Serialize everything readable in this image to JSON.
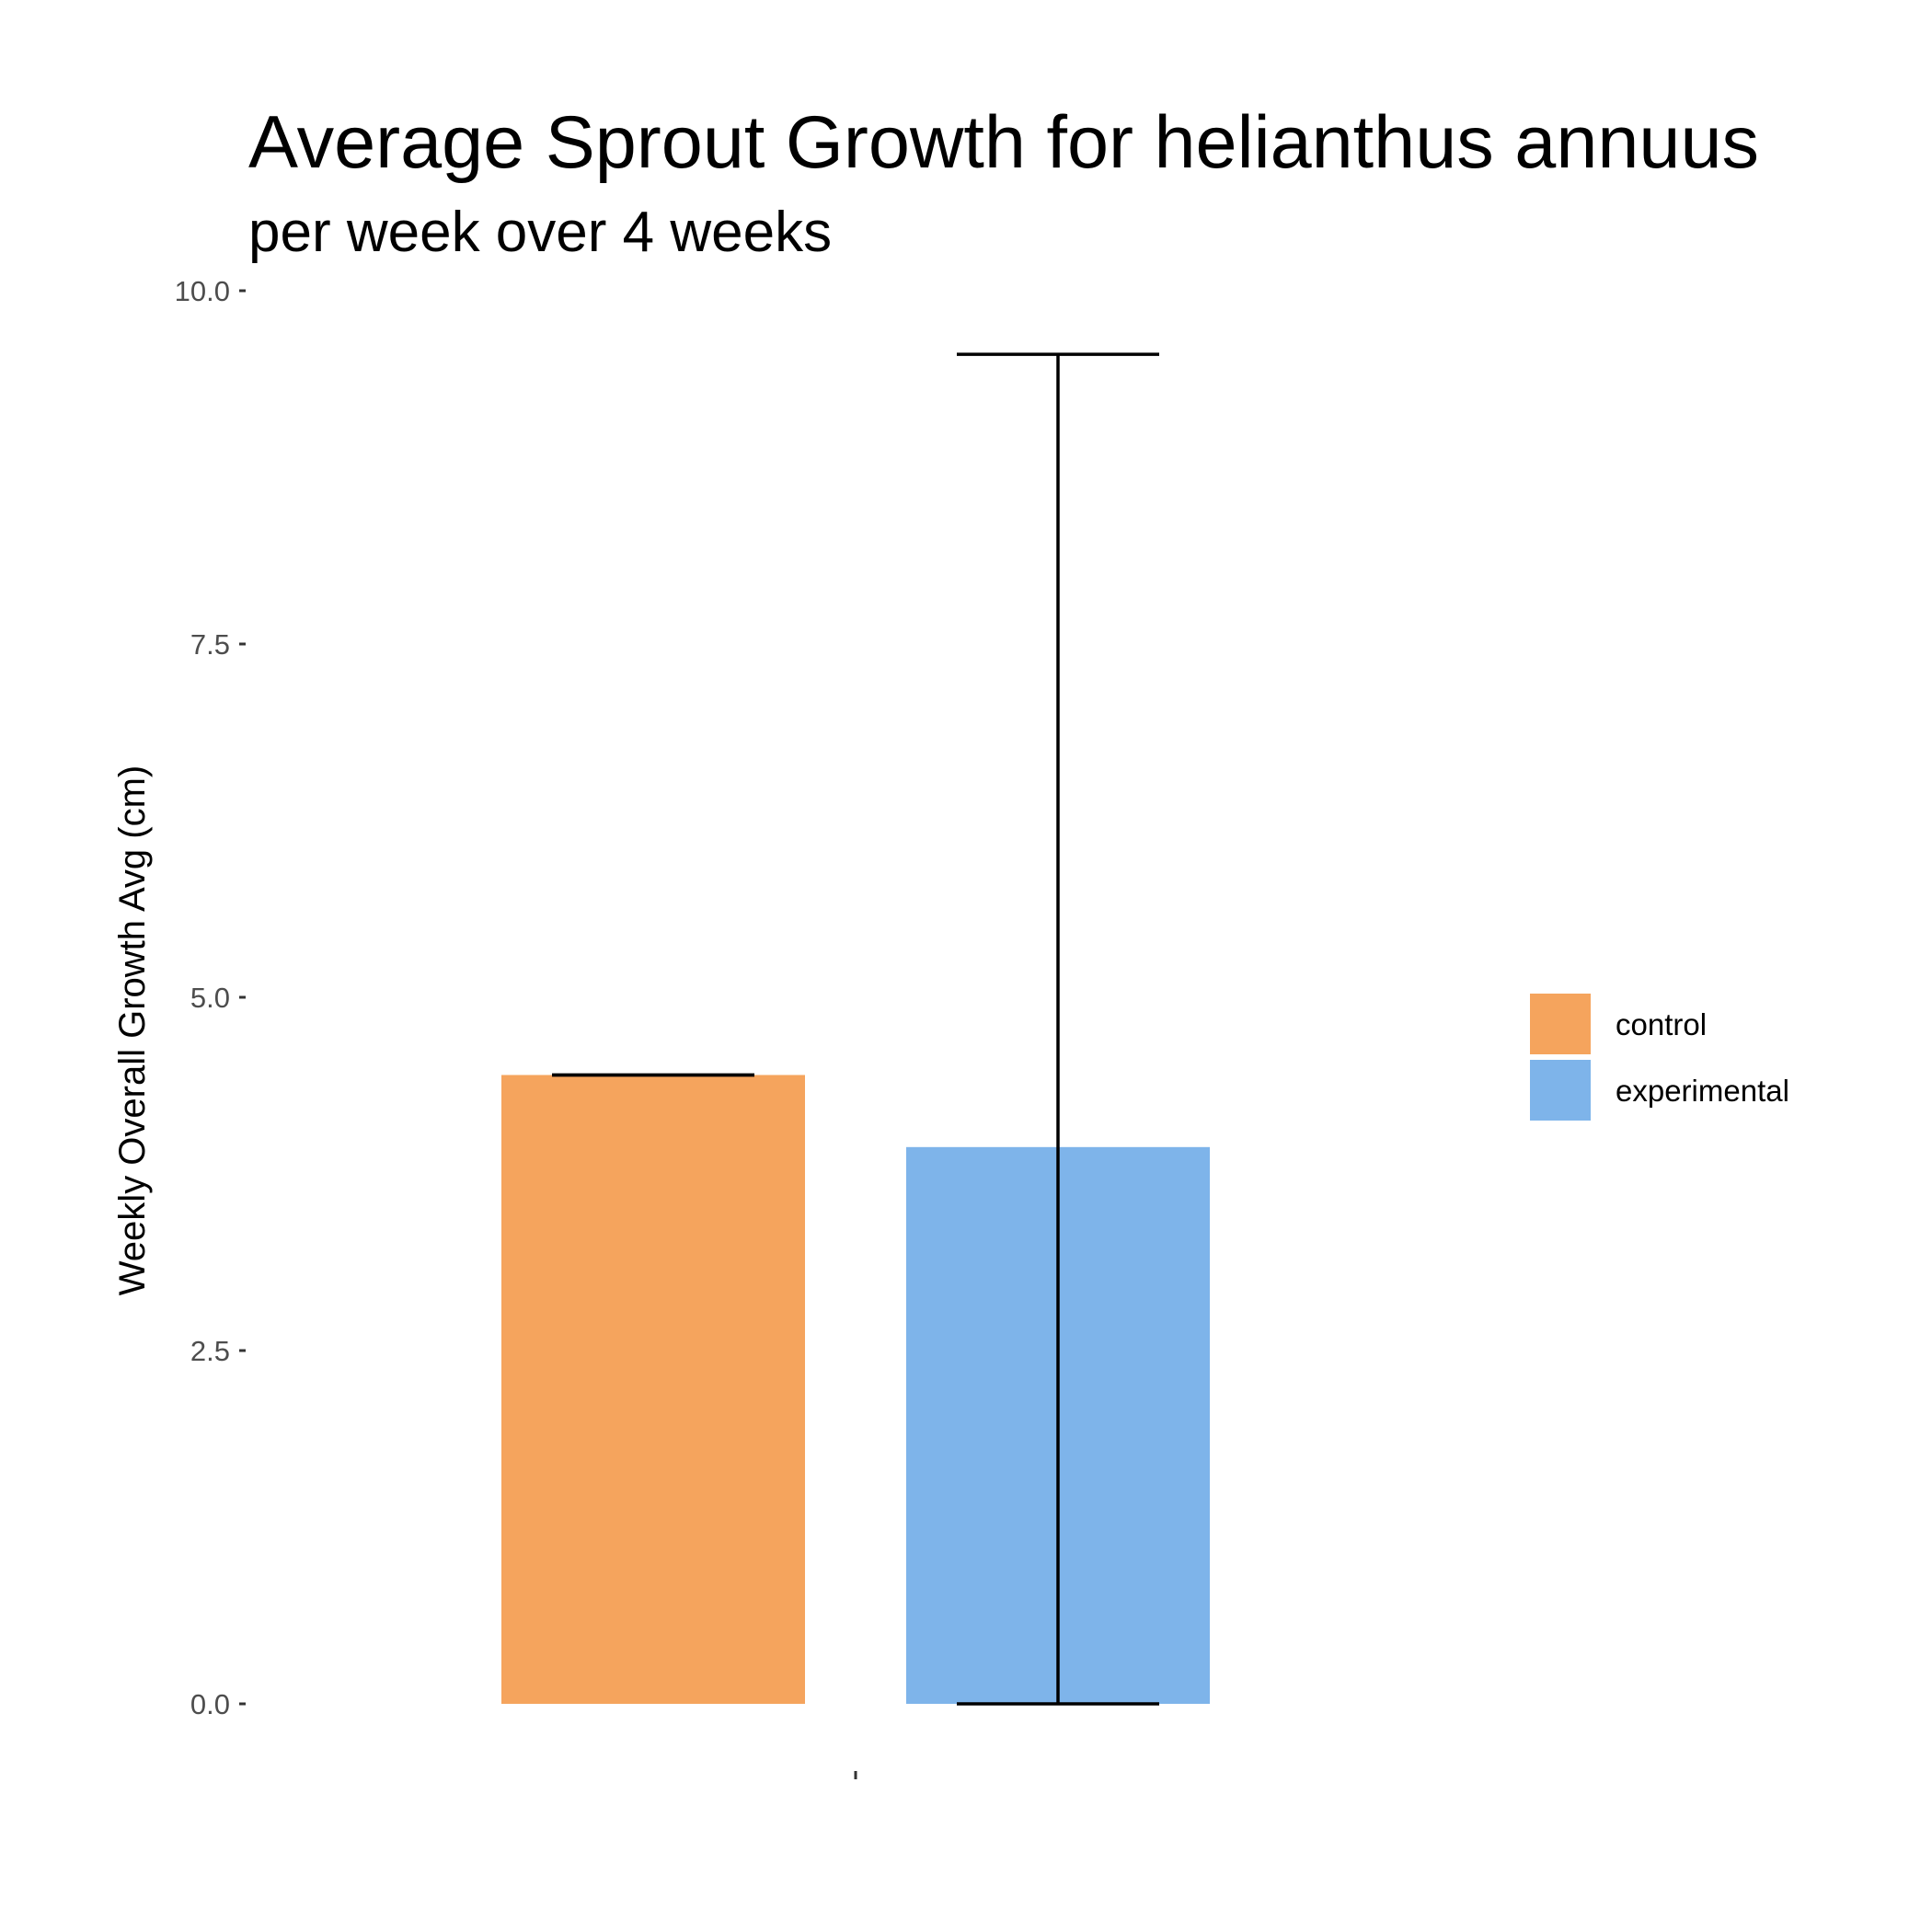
{
  "chart_data": {
    "type": "bar",
    "title": "Average Sprout Growth for helianthus annuus",
    "subtitle": "per week over 4 weeks",
    "xlabel": "",
    "ylabel": "Weekly Overall Growth Avg (cm)",
    "categories": [
      ""
    ],
    "ylim": [
      0,
      10
    ],
    "yticks": [
      0,
      2.5,
      5,
      7.5,
      10
    ],
    "ytick_labels": [
      "0.0",
      "2.5",
      "5.0",
      "7.5",
      "10.0"
    ],
    "grid": false,
    "legend_position": "right",
    "series": [
      {
        "name": "control",
        "values": [
          4.45
        ],
        "error_low": [
          4.45
        ],
        "error_high": [
          4.45
        ],
        "color": "#F5A45D"
      },
      {
        "name": "experimental",
        "values": [
          3.94
        ],
        "error_low": [
          0.0
        ],
        "error_high": [
          9.55
        ],
        "color": "#7EB4EA"
      }
    ]
  }
}
